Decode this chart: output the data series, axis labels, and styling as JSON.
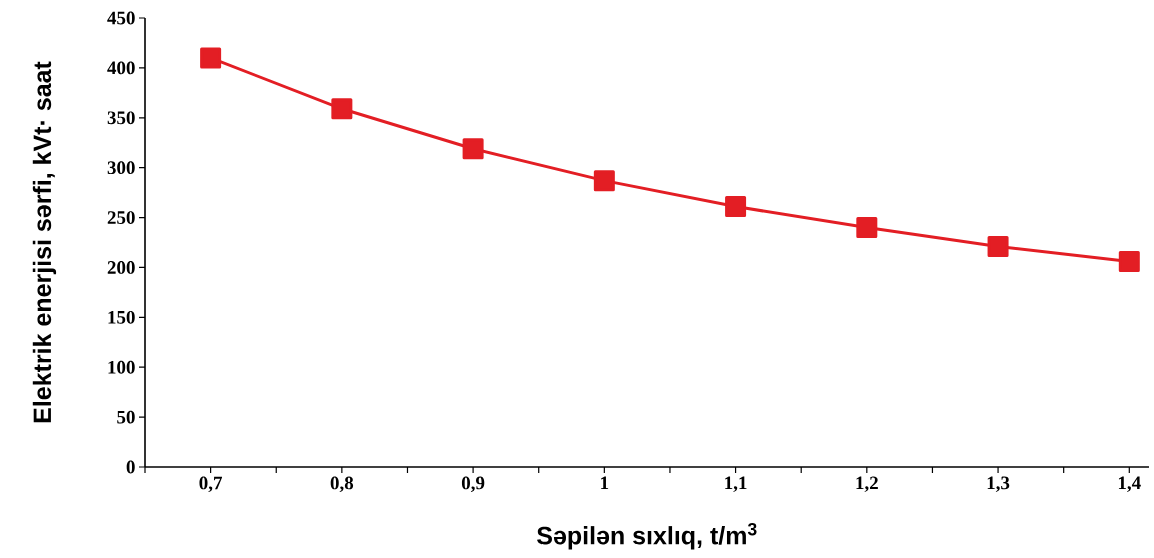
{
  "chart_data": {
    "type": "line",
    "xlabel": "Səpilən sıxlıq, t/m$^{3}$",
    "ylabel": "Elektrik enerjisi sərfi, kVt· saat",
    "x": [
      0.7,
      0.8,
      0.9,
      1.0,
      1.1,
      1.2,
      1.3,
      1.4
    ],
    "series": [
      {
        "color": "#e31e24",
        "values": [
          410,
          359,
          319,
          287,
          261,
          240,
          221,
          206
        ]
      }
    ],
    "marker": "square",
    "line_style": "solid",
    "xlim": [
      0.65,
      1.415
    ],
    "xticks": [
      {
        "value": 0.65,
        "label": null
      },
      {
        "value": 0.7,
        "label": "0,7"
      },
      {
        "value": 0.75,
        "label": null
      },
      {
        "value": 0.8,
        "label": "0,8"
      },
      {
        "value": 0.85,
        "label": null
      },
      {
        "value": 0.9,
        "label": "0,9"
      },
      {
        "value": 0.95,
        "label": null
      },
      {
        "value": 1.0,
        "label": "1"
      },
      {
        "value": 1.05,
        "label": null
      },
      {
        "value": 1.1,
        "label": "1,1"
      },
      {
        "value": 1.15,
        "label": null
      },
      {
        "value": 1.2,
        "label": "1,2"
      },
      {
        "value": 1.25,
        "label": null
      },
      {
        "value": 1.3,
        "label": "1,3"
      },
      {
        "value": 1.35,
        "label": null
      },
      {
        "value": 1.4,
        "label": "1,4"
      }
    ],
    "ylim": [
      0,
      450
    ],
    "yticks": [
      0,
      50,
      100,
      150,
      200,
      250,
      300,
      350,
      400,
      450
    ]
  }
}
